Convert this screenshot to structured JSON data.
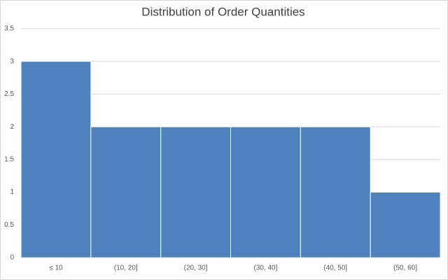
{
  "chart_data": {
    "type": "bar",
    "title": "Distribution of Order Quantities",
    "categories": [
      "≤ 10",
      "(10, 20]",
      "(20, 30]",
      "(30, 40]",
      "(40, 50]",
      "(50, 60]"
    ],
    "values": [
      3,
      2,
      2,
      2,
      2,
      1
    ],
    "color": "#4f81bd",
    "ylim": [
      0,
      3.5
    ],
    "yticks": [
      0,
      0.5,
      1,
      1.5,
      2,
      2.5,
      3,
      3.5
    ],
    "grid": true
  }
}
